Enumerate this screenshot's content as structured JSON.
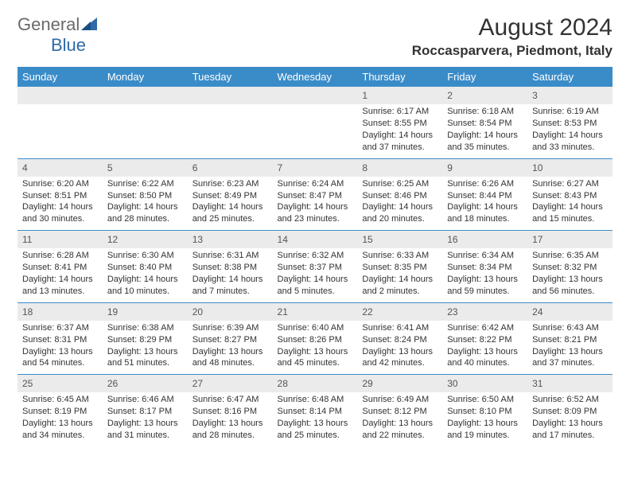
{
  "logo": {
    "text1": "General",
    "text2": "Blue",
    "color_gray": "#6a6a6a",
    "color_blue": "#2f6aa8"
  },
  "title": {
    "month": "August 2024",
    "location": "Roccasparvera, Piedmont, Italy"
  },
  "colors": {
    "header_bg": "#3a8cc9",
    "header_fg": "#ffffff",
    "gray_row": "#ebebeb",
    "body_text": "#333333",
    "border": "#3a8cc9"
  },
  "day_headers": [
    "Sunday",
    "Monday",
    "Tuesday",
    "Wednesday",
    "Thursday",
    "Friday",
    "Saturday"
  ],
  "weeks": [
    [
      null,
      null,
      null,
      null,
      {
        "day": "1",
        "sunrise": "Sunrise: 6:17 AM",
        "sunset": "Sunset: 8:55 PM",
        "daylight1": "Daylight: 14 hours",
        "daylight2": "and 37 minutes."
      },
      {
        "day": "2",
        "sunrise": "Sunrise: 6:18 AM",
        "sunset": "Sunset: 8:54 PM",
        "daylight1": "Daylight: 14 hours",
        "daylight2": "and 35 minutes."
      },
      {
        "day": "3",
        "sunrise": "Sunrise: 6:19 AM",
        "sunset": "Sunset: 8:53 PM",
        "daylight1": "Daylight: 14 hours",
        "daylight2": "and 33 minutes."
      }
    ],
    [
      {
        "day": "4",
        "sunrise": "Sunrise: 6:20 AM",
        "sunset": "Sunset: 8:51 PM",
        "daylight1": "Daylight: 14 hours",
        "daylight2": "and 30 minutes."
      },
      {
        "day": "5",
        "sunrise": "Sunrise: 6:22 AM",
        "sunset": "Sunset: 8:50 PM",
        "daylight1": "Daylight: 14 hours",
        "daylight2": "and 28 minutes."
      },
      {
        "day": "6",
        "sunrise": "Sunrise: 6:23 AM",
        "sunset": "Sunset: 8:49 PM",
        "daylight1": "Daylight: 14 hours",
        "daylight2": "and 25 minutes."
      },
      {
        "day": "7",
        "sunrise": "Sunrise: 6:24 AM",
        "sunset": "Sunset: 8:47 PM",
        "daylight1": "Daylight: 14 hours",
        "daylight2": "and 23 minutes."
      },
      {
        "day": "8",
        "sunrise": "Sunrise: 6:25 AM",
        "sunset": "Sunset: 8:46 PM",
        "daylight1": "Daylight: 14 hours",
        "daylight2": "and 20 minutes."
      },
      {
        "day": "9",
        "sunrise": "Sunrise: 6:26 AM",
        "sunset": "Sunset: 8:44 PM",
        "daylight1": "Daylight: 14 hours",
        "daylight2": "and 18 minutes."
      },
      {
        "day": "10",
        "sunrise": "Sunrise: 6:27 AM",
        "sunset": "Sunset: 8:43 PM",
        "daylight1": "Daylight: 14 hours",
        "daylight2": "and 15 minutes."
      }
    ],
    [
      {
        "day": "11",
        "sunrise": "Sunrise: 6:28 AM",
        "sunset": "Sunset: 8:41 PM",
        "daylight1": "Daylight: 14 hours",
        "daylight2": "and 13 minutes."
      },
      {
        "day": "12",
        "sunrise": "Sunrise: 6:30 AM",
        "sunset": "Sunset: 8:40 PM",
        "daylight1": "Daylight: 14 hours",
        "daylight2": "and 10 minutes."
      },
      {
        "day": "13",
        "sunrise": "Sunrise: 6:31 AM",
        "sunset": "Sunset: 8:38 PM",
        "daylight1": "Daylight: 14 hours",
        "daylight2": "and 7 minutes."
      },
      {
        "day": "14",
        "sunrise": "Sunrise: 6:32 AM",
        "sunset": "Sunset: 8:37 PM",
        "daylight1": "Daylight: 14 hours",
        "daylight2": "and 5 minutes."
      },
      {
        "day": "15",
        "sunrise": "Sunrise: 6:33 AM",
        "sunset": "Sunset: 8:35 PM",
        "daylight1": "Daylight: 14 hours",
        "daylight2": "and 2 minutes."
      },
      {
        "day": "16",
        "sunrise": "Sunrise: 6:34 AM",
        "sunset": "Sunset: 8:34 PM",
        "daylight1": "Daylight: 13 hours",
        "daylight2": "and 59 minutes."
      },
      {
        "day": "17",
        "sunrise": "Sunrise: 6:35 AM",
        "sunset": "Sunset: 8:32 PM",
        "daylight1": "Daylight: 13 hours",
        "daylight2": "and 56 minutes."
      }
    ],
    [
      {
        "day": "18",
        "sunrise": "Sunrise: 6:37 AM",
        "sunset": "Sunset: 8:31 PM",
        "daylight1": "Daylight: 13 hours",
        "daylight2": "and 54 minutes."
      },
      {
        "day": "19",
        "sunrise": "Sunrise: 6:38 AM",
        "sunset": "Sunset: 8:29 PM",
        "daylight1": "Daylight: 13 hours",
        "daylight2": "and 51 minutes."
      },
      {
        "day": "20",
        "sunrise": "Sunrise: 6:39 AM",
        "sunset": "Sunset: 8:27 PM",
        "daylight1": "Daylight: 13 hours",
        "daylight2": "and 48 minutes."
      },
      {
        "day": "21",
        "sunrise": "Sunrise: 6:40 AM",
        "sunset": "Sunset: 8:26 PM",
        "daylight1": "Daylight: 13 hours",
        "daylight2": "and 45 minutes."
      },
      {
        "day": "22",
        "sunrise": "Sunrise: 6:41 AM",
        "sunset": "Sunset: 8:24 PM",
        "daylight1": "Daylight: 13 hours",
        "daylight2": "and 42 minutes."
      },
      {
        "day": "23",
        "sunrise": "Sunrise: 6:42 AM",
        "sunset": "Sunset: 8:22 PM",
        "daylight1": "Daylight: 13 hours",
        "daylight2": "and 40 minutes."
      },
      {
        "day": "24",
        "sunrise": "Sunrise: 6:43 AM",
        "sunset": "Sunset: 8:21 PM",
        "daylight1": "Daylight: 13 hours",
        "daylight2": "and 37 minutes."
      }
    ],
    [
      {
        "day": "25",
        "sunrise": "Sunrise: 6:45 AM",
        "sunset": "Sunset: 8:19 PM",
        "daylight1": "Daylight: 13 hours",
        "daylight2": "and 34 minutes."
      },
      {
        "day": "26",
        "sunrise": "Sunrise: 6:46 AM",
        "sunset": "Sunset: 8:17 PM",
        "daylight1": "Daylight: 13 hours",
        "daylight2": "and 31 minutes."
      },
      {
        "day": "27",
        "sunrise": "Sunrise: 6:47 AM",
        "sunset": "Sunset: 8:16 PM",
        "daylight1": "Daylight: 13 hours",
        "daylight2": "and 28 minutes."
      },
      {
        "day": "28",
        "sunrise": "Sunrise: 6:48 AM",
        "sunset": "Sunset: 8:14 PM",
        "daylight1": "Daylight: 13 hours",
        "daylight2": "and 25 minutes."
      },
      {
        "day": "29",
        "sunrise": "Sunrise: 6:49 AM",
        "sunset": "Sunset: 8:12 PM",
        "daylight1": "Daylight: 13 hours",
        "daylight2": "and 22 minutes."
      },
      {
        "day": "30",
        "sunrise": "Sunrise: 6:50 AM",
        "sunset": "Sunset: 8:10 PM",
        "daylight1": "Daylight: 13 hours",
        "daylight2": "and 19 minutes."
      },
      {
        "day": "31",
        "sunrise": "Sunrise: 6:52 AM",
        "sunset": "Sunset: 8:09 PM",
        "daylight1": "Daylight: 13 hours",
        "daylight2": "and 17 minutes."
      }
    ]
  ]
}
